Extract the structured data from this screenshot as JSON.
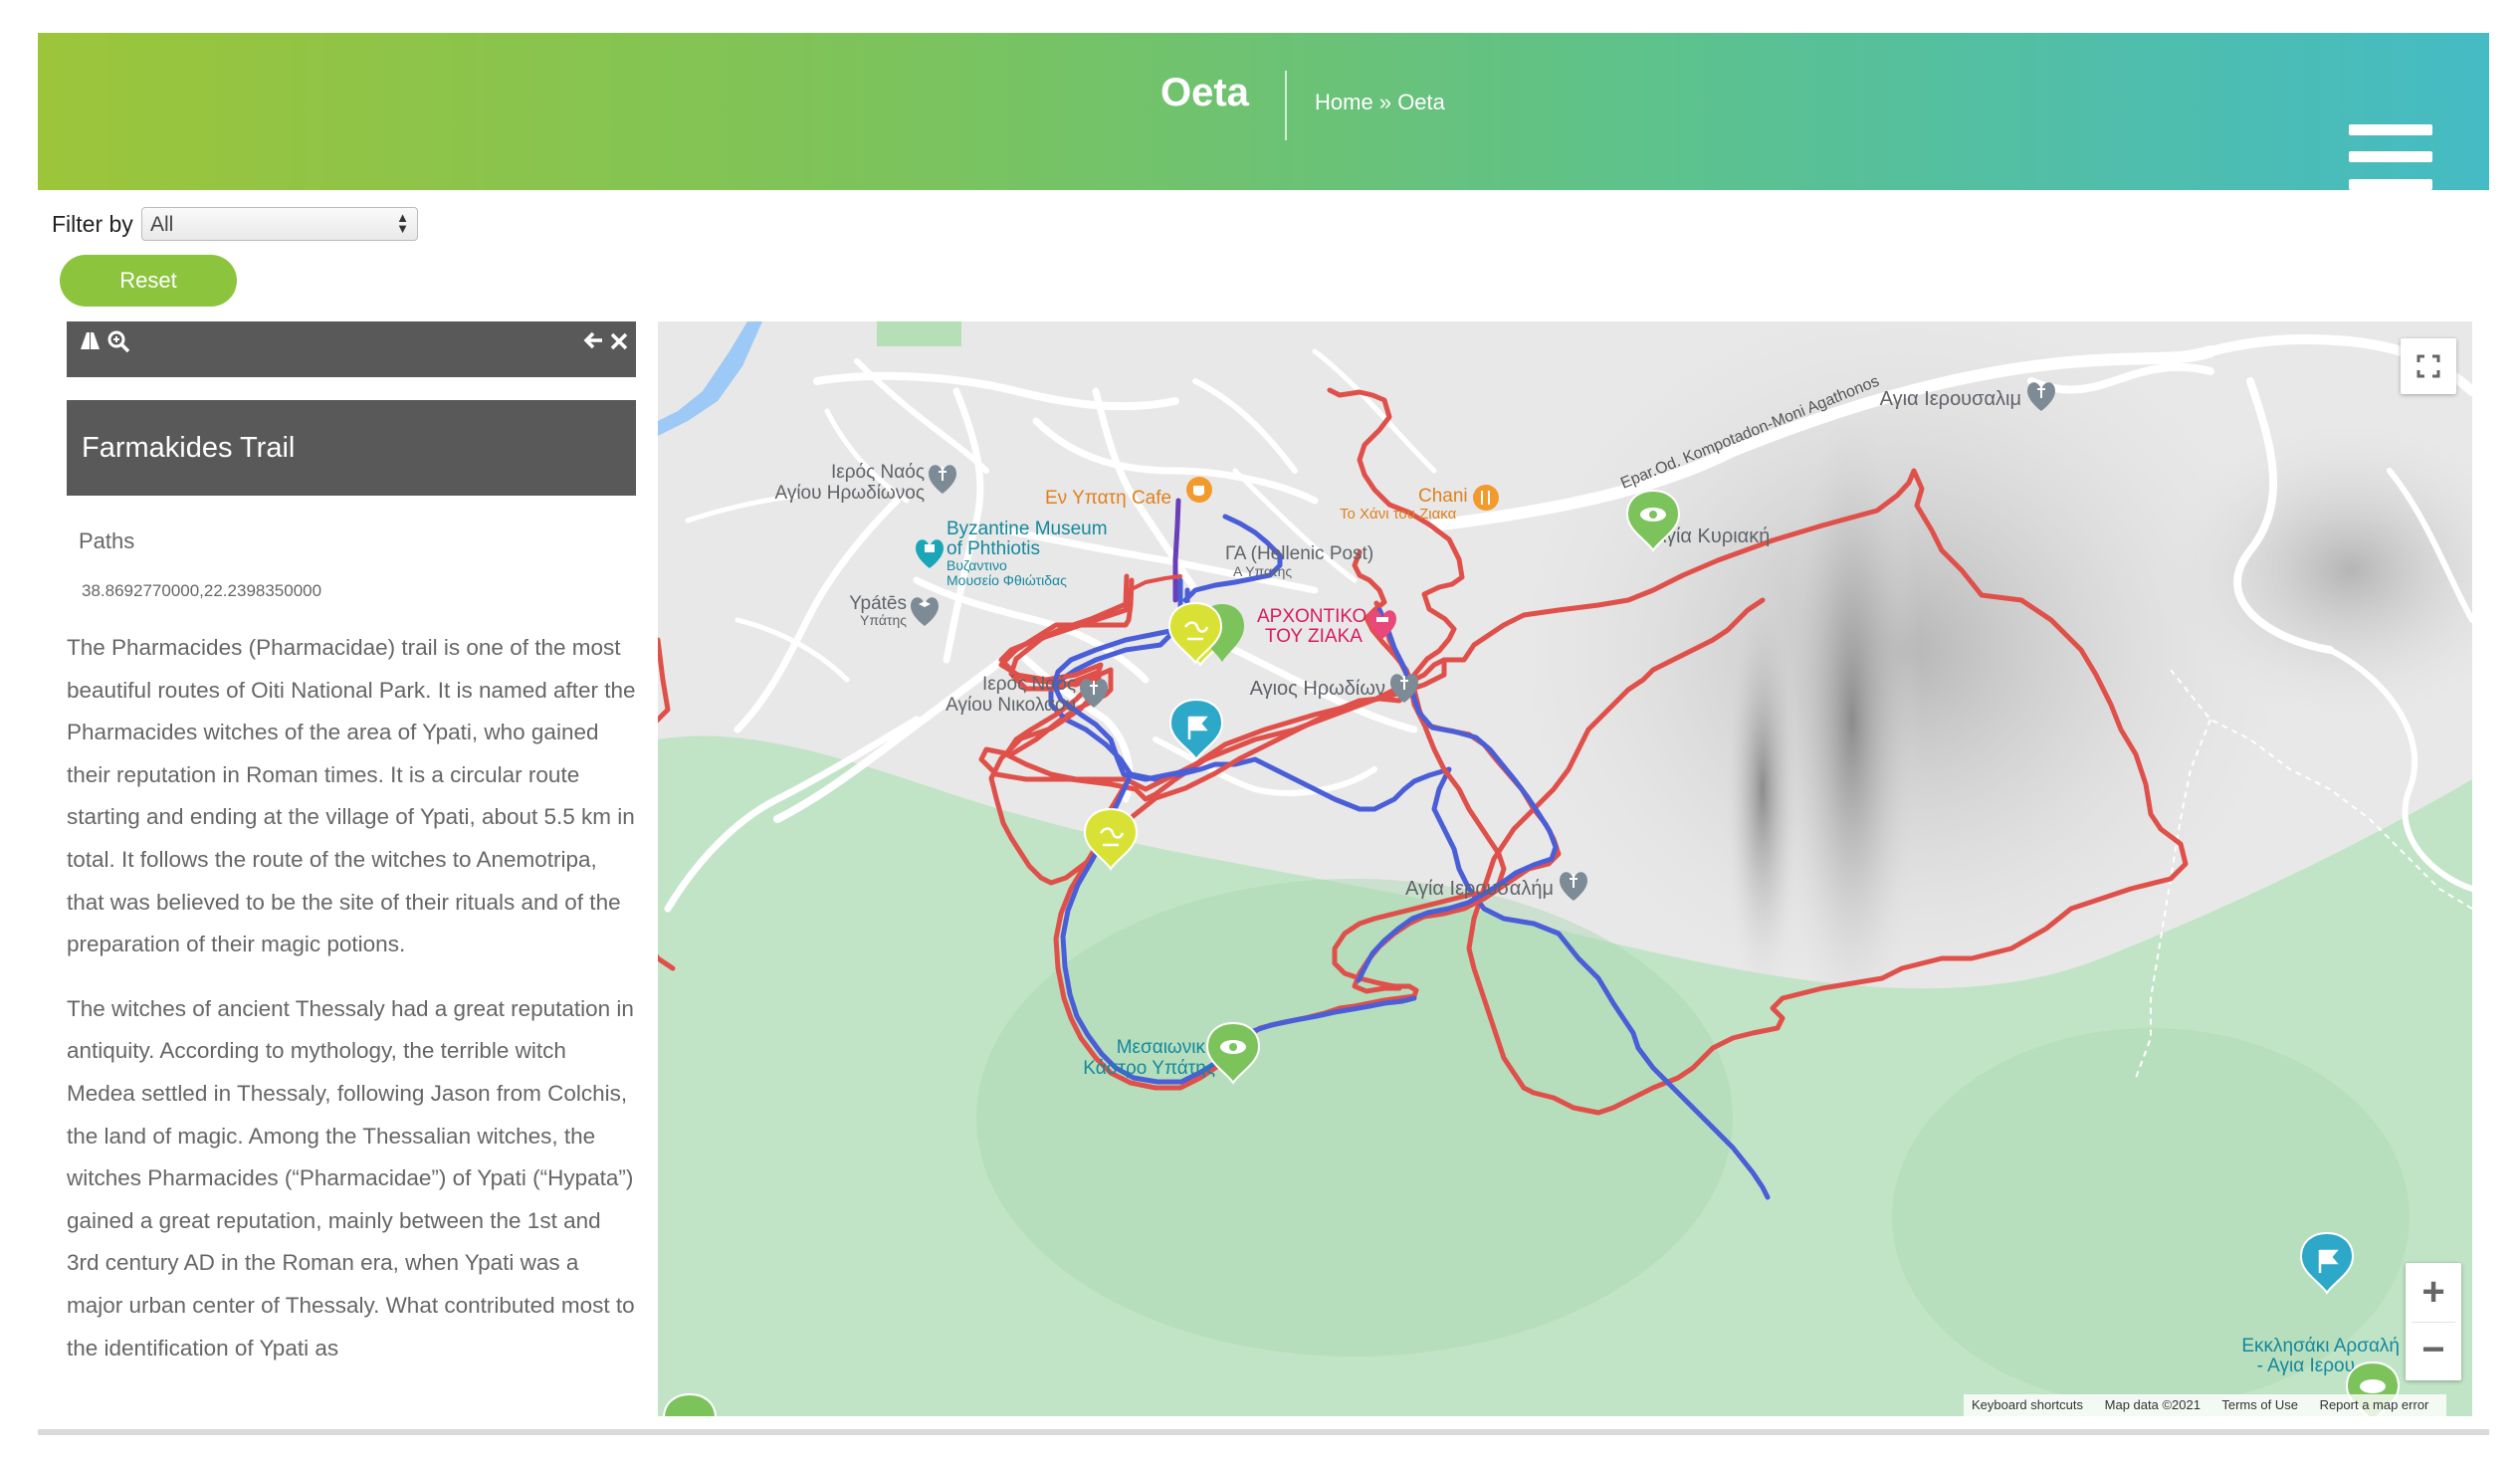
{
  "header": {
    "title": "Oeta",
    "breadcrumb_home": "Home",
    "breadcrumb_sep": "»",
    "breadcrumb_current": "Oeta"
  },
  "filter": {
    "label": "Filter by",
    "selected": "All"
  },
  "reset_label": "Reset",
  "sidebar": {
    "title": "Farmakides Trail",
    "paths_label": "Paths",
    "coordinates": "38.8692770000,22.2398350000",
    "description": [
      "The Pharmacides (Pharmacidae) trail is one of the most beautiful routes of Oiti National Park. It is named after the Pharmacides witches of the area of Ypati, who gained their reputation in Roman times. It is a circular route starting and ending at the village of Ypati, about 5.5 km in total. It follows the route of the witches to Anemotripa, that was believed to be the site of their rituals and of the preparation of their magic potions.",
      "The witches of ancient Thessaly had a great reputation in antiquity. According to mythology, the terrible witch Medea settled in Thessaly, following Jason from Colchis, the land of magic. Among the Thessalian witches, the witches Pharmacides (“Pharmacidae”) of Ypati (“Hypata”) gained a great reputation, mainly between the 1st and 3rd century AD in the Roman era, when Ypati was a major urban center of Thessaly. What contributed most to the identification of Ypati as"
    ]
  },
  "map": {
    "labels": {
      "ieros_irodionos_1": "Ιερός Ναός",
      "ieros_irodionos_2": "Αγίου Ηρωδίωνος",
      "en_ypati_cafe": "Εν Υπατη Cafe",
      "chani_1": "Chani",
      "chani_2": "Το Χάνι του Ζιακα",
      "byz_1": "Byzantine Museum",
      "byz_2": "of Phthiotis",
      "byz_3": "Βυζαντινο",
      "byz_4": "Μουσείο Φθιώτιδας",
      "post_1": "ΓΑ (Hellenic Post)",
      "post_2": "Α Υπατης",
      "ypates_1": "Ypátēs",
      "ypates_2": "Υπάτης",
      "archontiko_1": "ΑΡΧΟΝΤΙΚΟ",
      "archontiko_2": "ΤΟΥ ΖΙΑΚΑ",
      "nikolaou_1": "Ιερός Ναός",
      "nikolaou_2": "Αγίου Νικολάου",
      "agios_irodion": "Αγιος Ηρωδίων",
      "agia_kyriaki": "Αγία Κυριακή",
      "agia_ierousalim_top": "Αγια Ιερουσαλιμ",
      "agia_ierousalim_mid": "Αγία Ιερουσαλήμ",
      "kastro_1": "Μεσαιωνικ",
      "kastro_2": "Κάστρο Υπάτης",
      "ekklisaki_1": "Εκκλησάκι Αρσαλή",
      "ekklisaki_2": "- Αγια Ιερου",
      "road": "Epar.Od. Kompotadon-Moni Agathonos"
    },
    "zoom_in": "+",
    "zoom_out": "−",
    "attribution": {
      "shortcuts": "Keyboard shortcuts",
      "data": "Map data ©2021",
      "terms": "Terms of Use",
      "report": "Report a map error"
    },
    "colors": {
      "trail_red": "#e0504a",
      "trail_blue": "#4a5ed8",
      "park": "#bfe4c4",
      "poi_green": "#7cc35c",
      "poi_teal": "#2ea8c8"
    }
  }
}
